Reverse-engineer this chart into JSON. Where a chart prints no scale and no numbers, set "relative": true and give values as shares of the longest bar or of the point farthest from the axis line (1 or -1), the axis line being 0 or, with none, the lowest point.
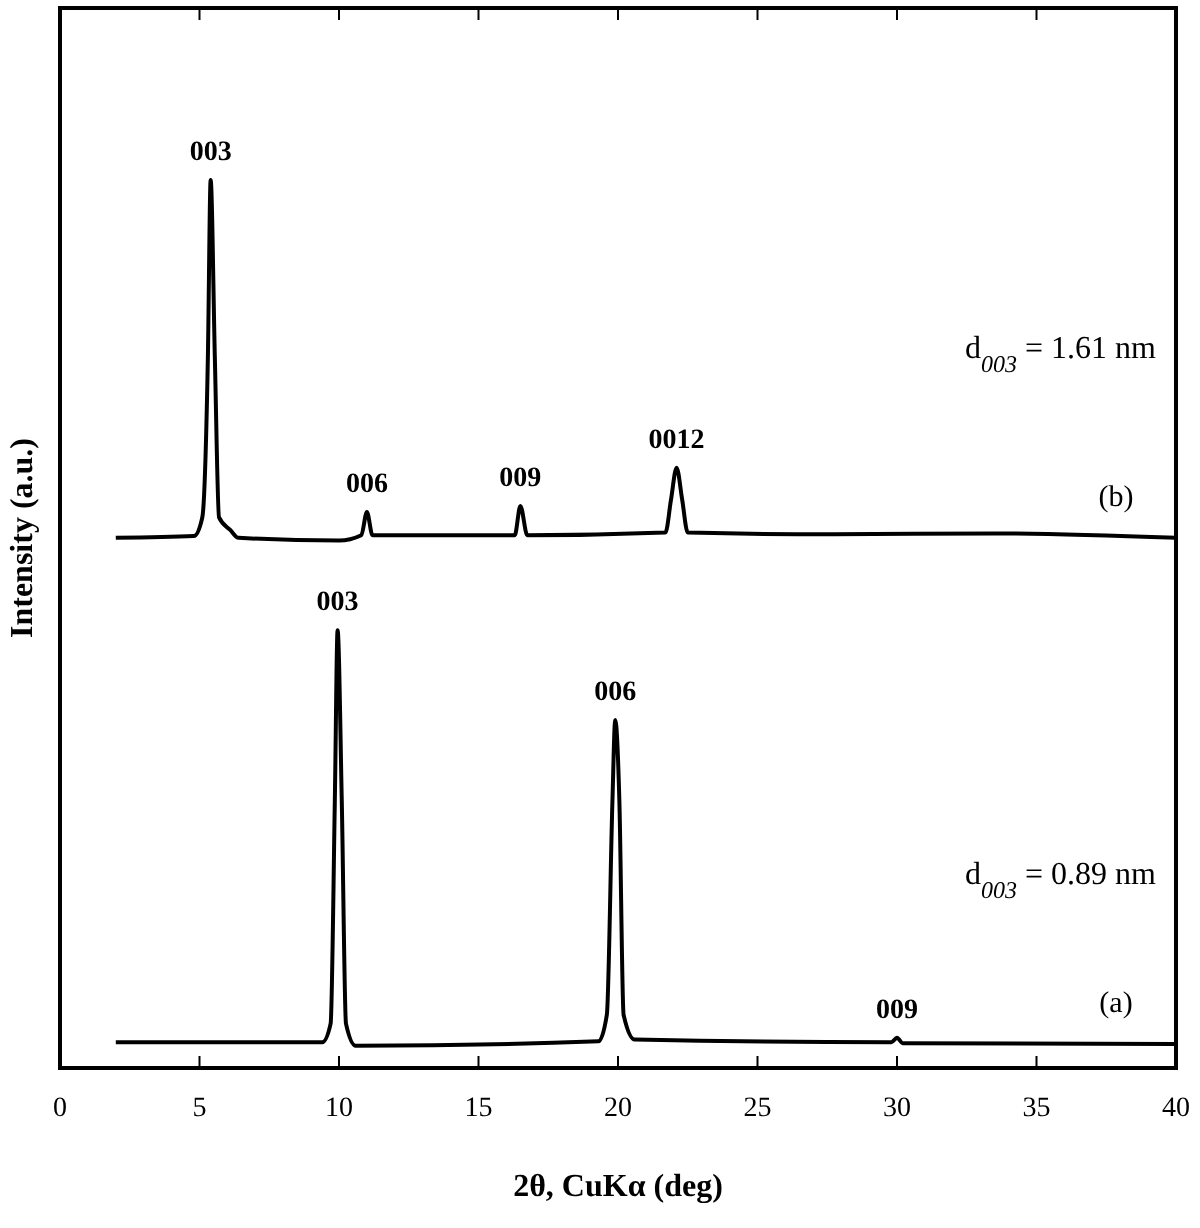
{
  "chart_data": {
    "type": "line",
    "relative": true,
    "xlabel": "2θ, CuKα (deg)",
    "ylabel": "Intensity (a.u.)",
    "xlim": [
      0,
      40
    ],
    "xticks": [
      0,
      5,
      10,
      15,
      20,
      25,
      30,
      35,
      40
    ],
    "line_style": "solid",
    "series": [
      {
        "name": "(b)",
        "color": "#000000",
        "x": [
          2,
          4.8,
          5.1,
          5.3,
          5.4,
          5.55,
          5.7,
          6.1,
          6.4,
          10.0,
          10.8,
          11.0,
          11.2,
          16.3,
          16.5,
          16.75,
          21.7,
          21.9,
          22.1,
          22.3,
          22.5,
          27.7,
          33.5,
          40
        ],
        "values": [
          0.597,
          0.599,
          0.62,
          0.8,
          1.0,
          0.8,
          0.62,
          0.606,
          0.597,
          0.594,
          0.6,
          0.626,
          0.6,
          0.6,
          0.633,
          0.6,
          0.603,
          0.64,
          0.676,
          0.64,
          0.603,
          0.601,
          0.602,
          0.597
        ]
      },
      {
        "name": "(a)",
        "color": "#000000",
        "x": [
          2,
          9.4,
          9.7,
          9.85,
          9.95,
          10.1,
          10.25,
          10.6,
          19.3,
          19.6,
          19.8,
          19.9,
          20.05,
          20.2,
          20.6,
          29.8,
          30.0,
          30.2,
          40
        ],
        "values": [
          0.029,
          0.029,
          0.05,
          0.3,
          0.493,
          0.3,
          0.05,
          0.025,
          0.03,
          0.06,
          0.3,
          0.392,
          0.3,
          0.06,
          0.032,
          0.029,
          0.034,
          0.028,
          0.027
        ]
      }
    ],
    "annotations": [
      {
        "text": "003",
        "x": 5.4,
        "y": 1.0
      },
      {
        "text": "006",
        "x": 11.0,
        "y": 0.626
      },
      {
        "text": "009",
        "x": 16.5,
        "y": 0.633
      },
      {
        "text": "0012",
        "x": 22.1,
        "y": 0.676
      },
      {
        "text": "003",
        "x": 9.95,
        "y": 0.493
      },
      {
        "text": "006",
        "x": 19.9,
        "y": 0.392
      },
      {
        "text": "009",
        "x": 30.0,
        "y": 0.034
      },
      "d$_{003}$ = 1.61 nm",
      "d$_{003}$ = 0.89 nm"
    ]
  }
}
